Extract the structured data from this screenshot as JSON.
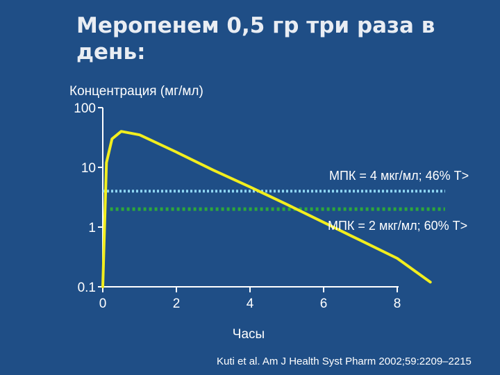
{
  "slide": {
    "title": "Меропенем 0,5 гр три раза в день:",
    "citation": "Kuti et al. Am J Health Syst Pharm 2002;59:2209–2215"
  },
  "colors": {
    "background": "#1f4e86",
    "curve": "#f2ee1e",
    "mic4": "#8fd6f2",
    "mic2": "#2ea83a",
    "axis": "#ffffff"
  },
  "chart_data": {
    "type": "line",
    "title": "Меропенем 0,5 гр три раза в день:",
    "ylabel": "Концентрация (мг/мл)",
    "xlabel": "Часы",
    "y_scale": "log",
    "ylim": [
      0.1,
      100
    ],
    "xlim": [
      0,
      8
    ],
    "x_ticks": [
      "0",
      "2",
      "4",
      "6",
      "8"
    ],
    "y_ticks": [
      "0.1",
      "1",
      "10",
      "100"
    ],
    "grid": false,
    "series": [
      {
        "x": [
          0,
          0.1,
          0.25,
          0.5,
          1,
          2,
          3,
          4,
          5,
          6,
          7,
          8,
          8.9
        ],
        "y": [
          0.1,
          12,
          30,
          40,
          35,
          18,
          9,
          4.7,
          2.4,
          1.2,
          0.6,
          0.3,
          0.12
        ]
      }
    ],
    "annotations": [
      {
        "text": "МПК = 4 мкг/мл; 46% T>",
        "y": 4,
        "x_start": 0,
        "x_end": 9.3
      },
      {
        "text": "МПК = 2 мкг/мл; 60% T>",
        "y": 2,
        "x_start": 0.2,
        "x_end": 9.3
      }
    ]
  }
}
